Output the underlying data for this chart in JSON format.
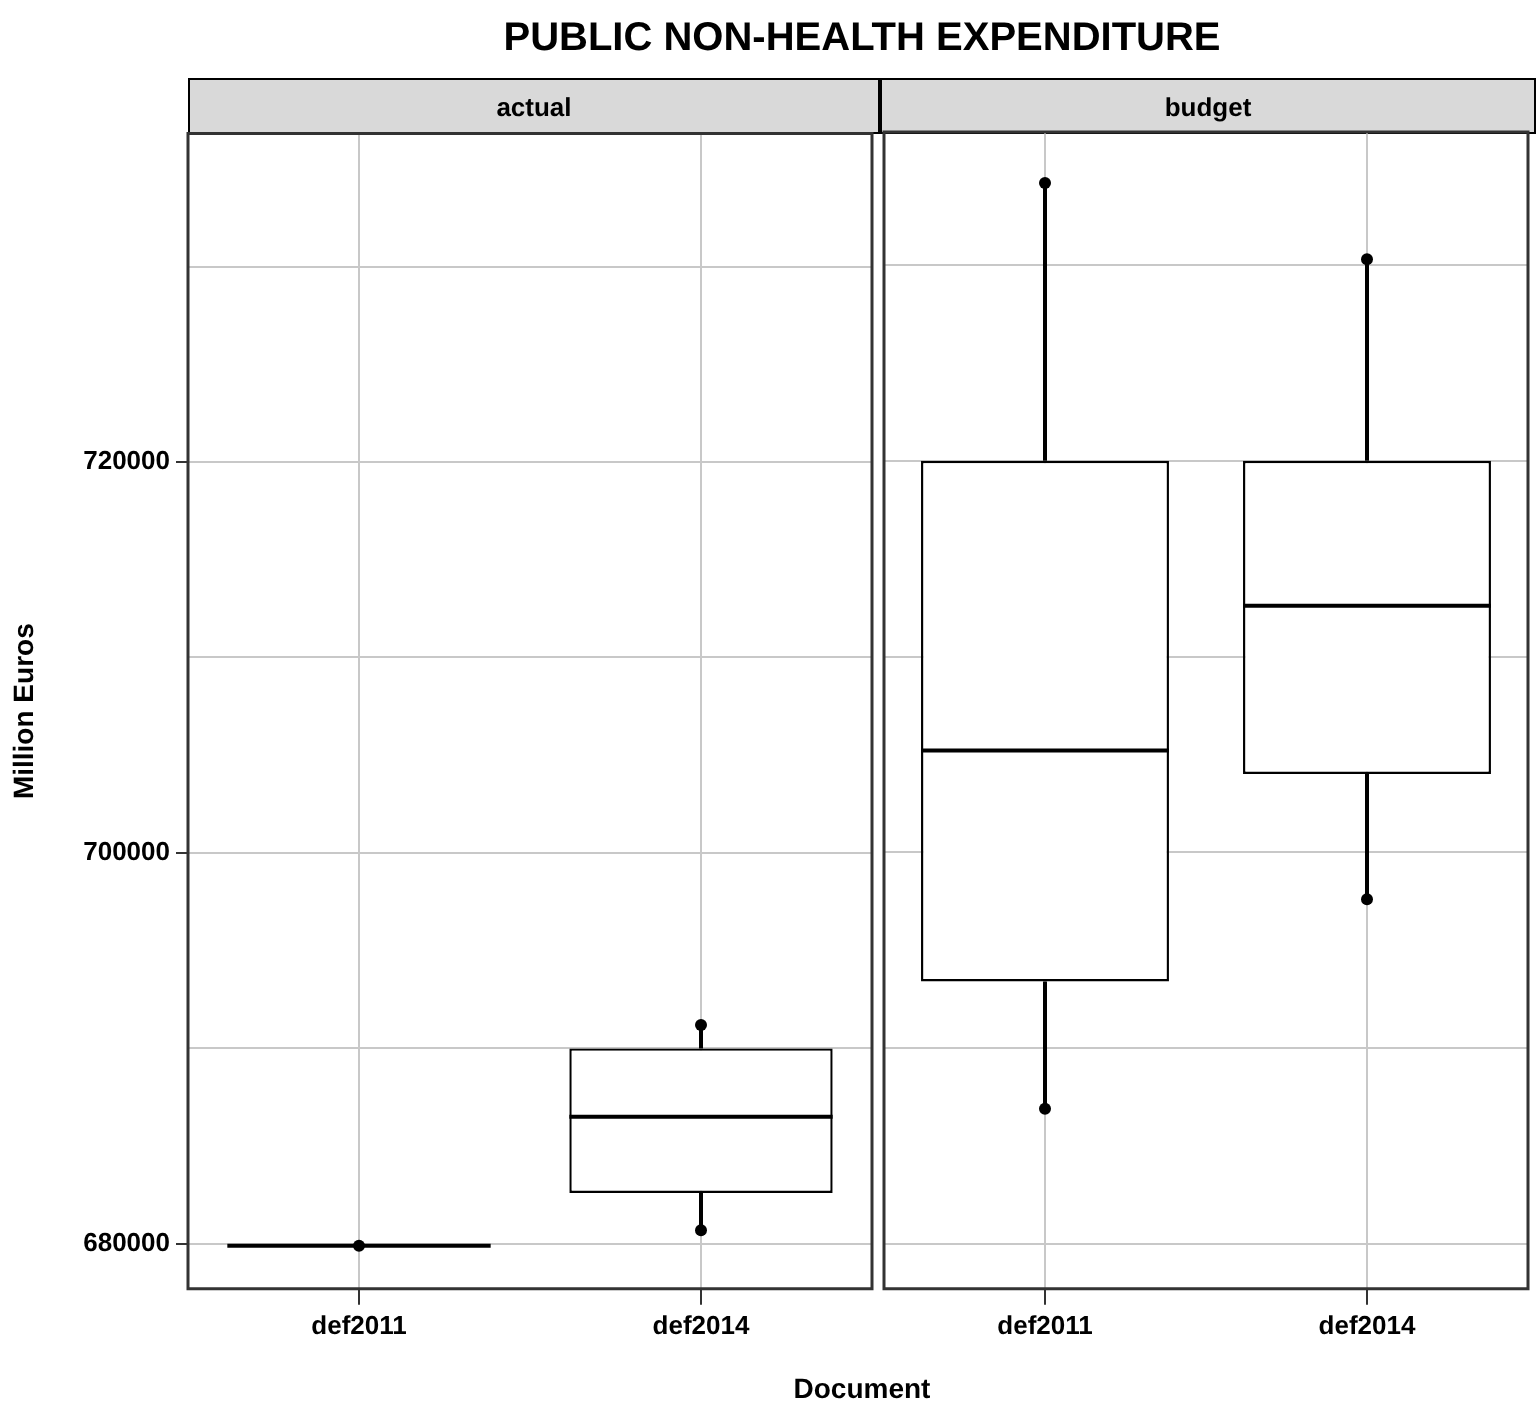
{
  "chart_data": [
    {
      "type": "box",
      "title": "PUBLIC NON-HEALTH EXPENDITURE",
      "subtitle": "actual",
      "xlabel": "Document",
      "ylabel": "Million Euros",
      "categories": [
        "def2011",
        "def2014"
      ],
      "color": "#000000",
      "boxes": [
        {
          "low": 679900,
          "q1": 679900,
          "median": 679900,
          "q3": 679900,
          "high": 679900
        },
        {
          "low": 680700,
          "q1": 682600,
          "median": 686500,
          "q3": 690000,
          "high": 691200
        }
      ],
      "ylim": [
        677700,
        736800
      ],
      "yticks": [
        680000,
        {
          "value": 690000,
          "label": null
        },
        700000,
        {
          "value": 710000,
          "label": null
        },
        720000,
        {
          "value": 730000,
          "label": null
        }
      ],
      "grid": true,
      "marker": "circle",
      "series": [
        {
          "type": "scatter",
          "color": "#000000",
          "x": [
            "def2011",
            "def2014",
            "def2014"
          ],
          "values": [
            679900,
            680700,
            691200
          ]
        }
      ]
    },
    {
      "type": "box",
      "subtitle": "budget",
      "categories": [
        "def2011",
        "def2014"
      ],
      "color": "#000000",
      "boxes": [
        {
          "low": 686900,
          "q1": 693400,
          "median": 705200,
          "q3": 720000,
          "high": 734200
        },
        {
          "low": 697600,
          "q1": 704000,
          "median": 712600,
          "q3": 720000,
          "high": 730300
        }
      ],
      "ylim": [
        677700,
        736800
      ],
      "yticks": [
        680000,
        {
          "value": 690000,
          "label": null
        },
        700000,
        {
          "value": 710000,
          "label": null
        },
        720000,
        {
          "value": 730000,
          "label": null
        }
      ],
      "grid": true,
      "tick_labels": "x",
      "marker": "circle",
      "series": [
        {
          "type": "scatter",
          "color": "#000000",
          "x": [
            "def2011",
            "def2011",
            "def2014",
            "def2014"
          ],
          "values": [
            686900,
            734200,
            697600,
            730300
          ]
        }
      ]
    }
  ]
}
